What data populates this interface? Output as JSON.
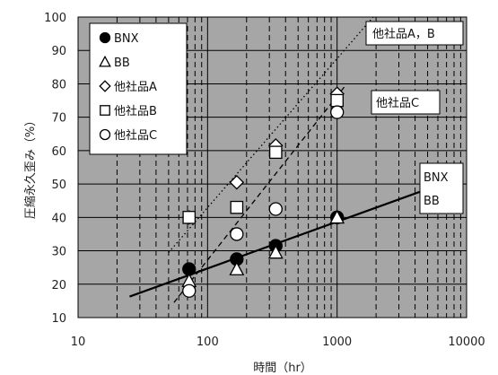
{
  "chart_data": {
    "type": "scatter",
    "xlabel": "時間（hr）",
    "ylabel": "圧縮永久歪み（%）",
    "xscale": "log",
    "xlim": [
      10,
      10000
    ],
    "ylim": [
      10,
      100
    ],
    "x_ticks": [
      "10",
      "100",
      "1000",
      "10000"
    ],
    "y_ticks": [
      "10",
      "20",
      "30",
      "40",
      "50",
      "60",
      "70",
      "80",
      "90",
      "100"
    ],
    "grid": true,
    "legend_position": "top-left",
    "colors": {
      "plot_bg": "#a6a6a6",
      "grid": "#000000",
      "marker_fill_open": "#ffffff",
      "marker_fill_solid": "#000000"
    },
    "series": [
      {
        "name": "BNX",
        "marker": "filled-circle",
        "x": [
          72,
          168,
          336,
          1000
        ],
        "y": [
          24.5,
          27.5,
          31.5,
          40
        ]
      },
      {
        "name": "BB",
        "marker": "open-triangle",
        "x": [
          72,
          168,
          336,
          1000
        ],
        "y": [
          21,
          24.5,
          29.5,
          40
        ]
      },
      {
        "name": "他社品A",
        "marker": "open-diamond",
        "x": [
          72,
          168,
          336,
          1000
        ],
        "y": [
          40,
          50.5,
          61.5,
          77
        ]
      },
      {
        "name": "他社品B",
        "marker": "open-square",
        "x": [
          72,
          168,
          336,
          1000
        ],
        "y": [
          40,
          43,
          59.5,
          75
        ]
      },
      {
        "name": "他社品C",
        "marker": "open-circle",
        "x": [
          72,
          168,
          336,
          1000
        ],
        "y": [
          18,
          35,
          42.5,
          71.5
        ]
      }
    ],
    "trend_lines": [
      {
        "style": "solid",
        "from": [
          25,
          16.3
        ],
        "to": [
          5000,
          48.5
        ]
      },
      {
        "style": "dotted",
        "from": [
          50,
          29.5
        ],
        "to": [
          1900,
          100
        ]
      },
      {
        "style": "dashed",
        "from": [
          55,
          14.5
        ],
        "to": [
          1150,
          79.3
        ]
      }
    ],
    "annotations": [
      "他社品A，B",
      "他社品C",
      "BNX",
      "BB"
    ]
  }
}
